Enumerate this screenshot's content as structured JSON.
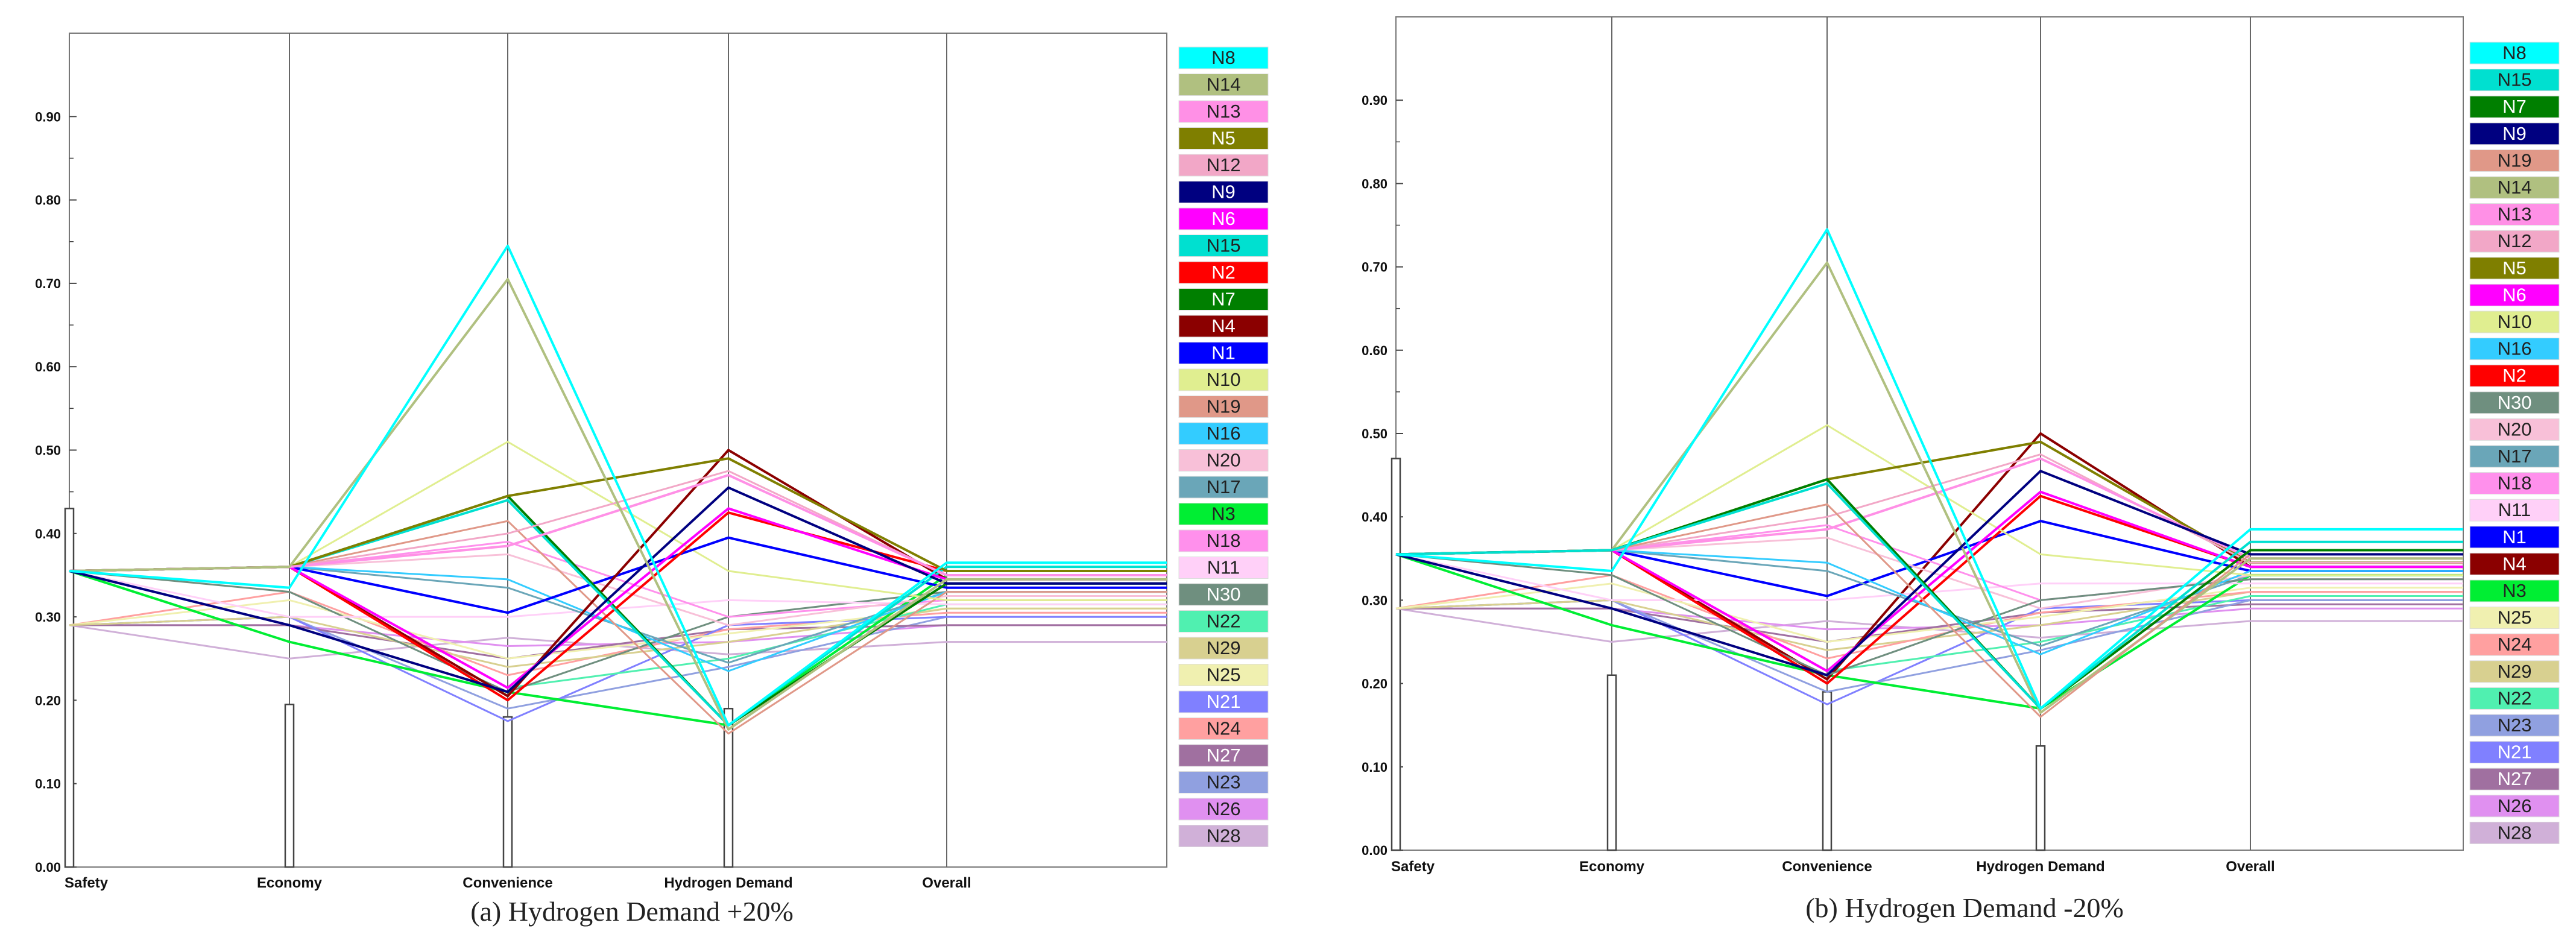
{
  "figure": {
    "panels": [
      "a",
      "b"
    ]
  },
  "series_colors": {
    "N1": "#0000ff",
    "N2": "#ff0000",
    "N3": "#00ee33",
    "N4": "#8b0000",
    "N5": "#7f7f00",
    "N6": "#ff00ff",
    "N7": "#007f00",
    "N8": "#00ffff",
    "N9": "#000080",
    "N10": "#e0ee90",
    "N11": "#ffd0f8",
    "N12": "#f2a7c7",
    "N13": "#ff90e6",
    "N14": "#b0c080",
    "N15": "#00e0d0",
    "N16": "#33ccff",
    "N17": "#6aa6b8",
    "N18": "#ff90ec",
    "N19": "#e09888",
    "N20": "#f8c0d8",
    "N21": "#8080ff",
    "N22": "#50f0b0",
    "N23": "#90a0e0",
    "N24": "#ffa0a0",
    "N25": "#f0f0b0",
    "N26": "#e090f0",
    "N27": "#a070a0",
    "N28": "#d0b0d8",
    "N29": "#d8d090",
    "N30": "#6f8f7f"
  },
  "chart_data": [
    {
      "type": "line",
      "subtype": "parallel-coordinates",
      "caption": "(a) Hydrogen Demand +20%",
      "axes": [
        "Safety",
        "Economy",
        "Convenience",
        "Hydrogen Demand",
        "Overall"
      ],
      "ylim": [
        0,
        1
      ],
      "yticks": [
        "0.00",
        "0.10",
        "0.20",
        "0.30",
        "0.40",
        "0.50",
        "0.60",
        "0.70",
        "0.80",
        "0.90"
      ],
      "legend_order": [
        "N8",
        "N14",
        "N13",
        "N5",
        "N12",
        "N9",
        "N6",
        "N15",
        "N2",
        "N7",
        "N4",
        "N1",
        "N10",
        "N19",
        "N16",
        "N20",
        "N17",
        "N3",
        "N18",
        "N11",
        "N30",
        "N22",
        "N29",
        "N25",
        "N21",
        "N24",
        "N27",
        "N23",
        "N26",
        "N28"
      ],
      "axis_bars": [
        0.43,
        0.195,
        0.18,
        0.19,
        0
      ],
      "series": [
        {
          "name": "N8",
          "values": [
            0.355,
            0.335,
            0.745,
            0.17,
            0.365
          ]
        },
        {
          "name": "N14",
          "values": [
            0.355,
            0.36,
            0.705,
            0.165,
            0.345
          ]
        },
        {
          "name": "N13",
          "values": [
            0.355,
            0.36,
            0.385,
            0.47,
            0.35
          ]
        },
        {
          "name": "N5",
          "values": [
            0.355,
            0.36,
            0.445,
            0.49,
            0.355
          ]
        },
        {
          "name": "N12",
          "values": [
            0.355,
            0.36,
            0.4,
            0.475,
            0.35
          ]
        },
        {
          "name": "N9",
          "values": [
            0.355,
            0.29,
            0.21,
            0.455,
            0.34
          ]
        },
        {
          "name": "N6",
          "values": [
            0.355,
            0.36,
            0.215,
            0.43,
            0.345
          ]
        },
        {
          "name": "N15",
          "values": [
            0.355,
            0.36,
            0.44,
            0.17,
            0.36
          ]
        },
        {
          "name": "N2",
          "values": [
            0.355,
            0.36,
            0.2,
            0.425,
            0.355
          ]
        },
        {
          "name": "N7",
          "values": [
            0.355,
            0.36,
            0.445,
            0.17,
            0.34
          ]
        },
        {
          "name": "N4",
          "values": [
            0.355,
            0.36,
            0.205,
            0.5,
            0.345
          ]
        },
        {
          "name": "N1",
          "values": [
            0.355,
            0.36,
            0.305,
            0.395,
            0.335
          ]
        },
        {
          "name": "N10",
          "values": [
            0.355,
            0.36,
            0.51,
            0.355,
            0.32
          ]
        },
        {
          "name": "N19",
          "values": [
            0.355,
            0.36,
            0.415,
            0.16,
            0.33
          ]
        },
        {
          "name": "N16",
          "values": [
            0.355,
            0.36,
            0.345,
            0.235,
            0.33
          ]
        },
        {
          "name": "N20",
          "values": [
            0.355,
            0.36,
            0.375,
            0.29,
            0.325
          ]
        },
        {
          "name": "N17",
          "values": [
            0.355,
            0.36,
            0.335,
            0.245,
            0.33
          ]
        },
        {
          "name": "N3",
          "values": [
            0.355,
            0.27,
            0.21,
            0.17,
            0.35
          ]
        },
        {
          "name": "N18",
          "values": [
            0.355,
            0.36,
            0.39,
            0.3,
            0.32
          ]
        },
        {
          "name": "N11",
          "values": [
            0.355,
            0.3,
            0.3,
            0.32,
            0.315
          ]
        },
        {
          "name": "N30",
          "values": [
            0.355,
            0.33,
            0.21,
            0.3,
            0.33
          ]
        },
        {
          "name": "N22",
          "values": [
            0.355,
            0.36,
            0.215,
            0.25,
            0.315
          ]
        },
        {
          "name": "N29",
          "values": [
            0.29,
            0.3,
            0.24,
            0.27,
            0.31
          ]
        },
        {
          "name": "N25",
          "values": [
            0.29,
            0.32,
            0.25,
            0.28,
            0.31
          ]
        },
        {
          "name": "N21",
          "values": [
            0.29,
            0.3,
            0.175,
            0.29,
            0.3
          ]
        },
        {
          "name": "N24",
          "values": [
            0.29,
            0.33,
            0.23,
            0.285,
            0.305
          ]
        },
        {
          "name": "N27",
          "values": [
            0.29,
            0.29,
            0.25,
            0.285,
            0.29
          ]
        },
        {
          "name": "N23",
          "values": [
            0.29,
            0.3,
            0.19,
            0.24,
            0.3
          ]
        },
        {
          "name": "N26",
          "values": [
            0.29,
            0.29,
            0.265,
            0.27,
            0.29
          ]
        },
        {
          "name": "N28",
          "values": [
            0.29,
            0.25,
            0.275,
            0.255,
            0.27
          ]
        }
      ]
    },
    {
      "type": "line",
      "subtype": "parallel-coordinates",
      "caption": "(b) Hydrogen Demand -20%",
      "axes": [
        "Safety",
        "Economy",
        "Convenience",
        "Hydrogen Demand",
        "Overall"
      ],
      "ylim": [
        0,
        1
      ],
      "yticks": [
        "0.00",
        "0.10",
        "0.20",
        "0.30",
        "0.40",
        "0.50",
        "0.60",
        "0.70",
        "0.80",
        "0.90"
      ],
      "legend_order": [
        "N8",
        "N15",
        "N7",
        "N9",
        "N19",
        "N14",
        "N13",
        "N12",
        "N5",
        "N6",
        "N10",
        "N16",
        "N2",
        "N30",
        "N20",
        "N17",
        "N18",
        "N11",
        "N1",
        "N4",
        "N3",
        "N25",
        "N24",
        "N29",
        "N22",
        "N23",
        "N21",
        "N27",
        "N26",
        "N28"
      ],
      "axis_bars": [
        0.47,
        0.21,
        0.19,
        0.125,
        0
      ],
      "series": [
        {
          "name": "N8",
          "values": [
            0.355,
            0.335,
            0.745,
            0.17,
            0.385
          ]
        },
        {
          "name": "N15",
          "values": [
            0.355,
            0.36,
            0.44,
            0.17,
            0.37
          ]
        },
        {
          "name": "N7",
          "values": [
            0.355,
            0.36,
            0.445,
            0.17,
            0.36
          ]
        },
        {
          "name": "N9",
          "values": [
            0.355,
            0.29,
            0.21,
            0.455,
            0.355
          ]
        },
        {
          "name": "N19",
          "values": [
            0.355,
            0.36,
            0.415,
            0.16,
            0.355
          ]
        },
        {
          "name": "N14",
          "values": [
            0.355,
            0.36,
            0.705,
            0.165,
            0.35
          ]
        },
        {
          "name": "N13",
          "values": [
            0.355,
            0.36,
            0.385,
            0.47,
            0.35
          ]
        },
        {
          "name": "N12",
          "values": [
            0.355,
            0.36,
            0.4,
            0.475,
            0.345
          ]
        },
        {
          "name": "N5",
          "values": [
            0.355,
            0.36,
            0.445,
            0.49,
            0.345
          ]
        },
        {
          "name": "N6",
          "values": [
            0.355,
            0.36,
            0.215,
            0.43,
            0.34
          ]
        },
        {
          "name": "N10",
          "values": [
            0.355,
            0.36,
            0.51,
            0.355,
            0.33
          ]
        },
        {
          "name": "N16",
          "values": [
            0.355,
            0.36,
            0.345,
            0.235,
            0.335
          ]
        },
        {
          "name": "N2",
          "values": [
            0.355,
            0.36,
            0.2,
            0.425,
            0.34
          ]
        },
        {
          "name": "N30",
          "values": [
            0.355,
            0.33,
            0.21,
            0.3,
            0.325
          ]
        },
        {
          "name": "N20",
          "values": [
            0.355,
            0.36,
            0.375,
            0.29,
            0.33
          ]
        },
        {
          "name": "N17",
          "values": [
            0.355,
            0.36,
            0.335,
            0.245,
            0.33
          ]
        },
        {
          "name": "N18",
          "values": [
            0.355,
            0.36,
            0.39,
            0.3,
            0.325
          ]
        },
        {
          "name": "N11",
          "values": [
            0.355,
            0.3,
            0.3,
            0.32,
            0.32
          ]
        },
        {
          "name": "N1",
          "values": [
            0.355,
            0.36,
            0.305,
            0.395,
            0.335
          ]
        },
        {
          "name": "N4",
          "values": [
            0.355,
            0.36,
            0.205,
            0.5,
            0.34
          ]
        },
        {
          "name": "N3",
          "values": [
            0.355,
            0.27,
            0.21,
            0.17,
            0.33
          ]
        },
        {
          "name": "N25",
          "values": [
            0.29,
            0.32,
            0.25,
            0.28,
            0.315
          ]
        },
        {
          "name": "N24",
          "values": [
            0.29,
            0.33,
            0.23,
            0.285,
            0.31
          ]
        },
        {
          "name": "N29",
          "values": [
            0.29,
            0.3,
            0.24,
            0.27,
            0.31
          ]
        },
        {
          "name": "N22",
          "values": [
            0.355,
            0.36,
            0.215,
            0.25,
            0.305
          ]
        },
        {
          "name": "N23",
          "values": [
            0.29,
            0.3,
            0.19,
            0.24,
            0.3
          ]
        },
        {
          "name": "N21",
          "values": [
            0.29,
            0.3,
            0.175,
            0.29,
            0.3
          ]
        },
        {
          "name": "N27",
          "values": [
            0.29,
            0.29,
            0.25,
            0.285,
            0.295
          ]
        },
        {
          "name": "N26",
          "values": [
            0.29,
            0.29,
            0.265,
            0.27,
            0.29
          ]
        },
        {
          "name": "N28",
          "values": [
            0.29,
            0.25,
            0.275,
            0.255,
            0.275
          ]
        }
      ]
    }
  ]
}
